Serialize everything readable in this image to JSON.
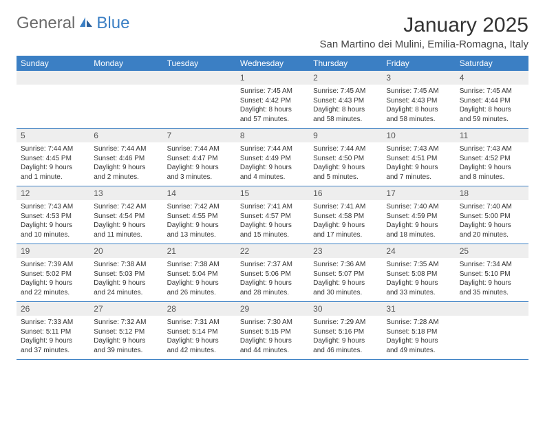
{
  "logo": {
    "text1": "General",
    "text2": "Blue"
  },
  "title": "January 2025",
  "location": "San Martino dei Mulini, Emilia-Romagna, Italy",
  "colors": {
    "header_bg": "#3b7fc4",
    "header_text": "#ffffff",
    "date_bg": "#eeeeee",
    "date_text": "#555555",
    "body_text": "#333333",
    "page_bg": "#ffffff",
    "logo_gray": "#6b6b6b",
    "logo_blue": "#3b7fc4"
  },
  "day_names": [
    "Sunday",
    "Monday",
    "Tuesday",
    "Wednesday",
    "Thursday",
    "Friday",
    "Saturday"
  ],
  "weeks": [
    [
      {
        "date": "",
        "sunrise": "",
        "sunset": "",
        "daylight": ""
      },
      {
        "date": "",
        "sunrise": "",
        "sunset": "",
        "daylight": ""
      },
      {
        "date": "",
        "sunrise": "",
        "sunset": "",
        "daylight": ""
      },
      {
        "date": "1",
        "sunrise": "Sunrise: 7:45 AM",
        "sunset": "Sunset: 4:42 PM",
        "daylight": "Daylight: 8 hours and 57 minutes."
      },
      {
        "date": "2",
        "sunrise": "Sunrise: 7:45 AM",
        "sunset": "Sunset: 4:43 PM",
        "daylight": "Daylight: 8 hours and 58 minutes."
      },
      {
        "date": "3",
        "sunrise": "Sunrise: 7:45 AM",
        "sunset": "Sunset: 4:43 PM",
        "daylight": "Daylight: 8 hours and 58 minutes."
      },
      {
        "date": "4",
        "sunrise": "Sunrise: 7:45 AM",
        "sunset": "Sunset: 4:44 PM",
        "daylight": "Daylight: 8 hours and 59 minutes."
      }
    ],
    [
      {
        "date": "5",
        "sunrise": "Sunrise: 7:44 AM",
        "sunset": "Sunset: 4:45 PM",
        "daylight": "Daylight: 9 hours and 1 minute."
      },
      {
        "date": "6",
        "sunrise": "Sunrise: 7:44 AM",
        "sunset": "Sunset: 4:46 PM",
        "daylight": "Daylight: 9 hours and 2 minutes."
      },
      {
        "date": "7",
        "sunrise": "Sunrise: 7:44 AM",
        "sunset": "Sunset: 4:47 PM",
        "daylight": "Daylight: 9 hours and 3 minutes."
      },
      {
        "date": "8",
        "sunrise": "Sunrise: 7:44 AM",
        "sunset": "Sunset: 4:49 PM",
        "daylight": "Daylight: 9 hours and 4 minutes."
      },
      {
        "date": "9",
        "sunrise": "Sunrise: 7:44 AM",
        "sunset": "Sunset: 4:50 PM",
        "daylight": "Daylight: 9 hours and 5 minutes."
      },
      {
        "date": "10",
        "sunrise": "Sunrise: 7:43 AM",
        "sunset": "Sunset: 4:51 PM",
        "daylight": "Daylight: 9 hours and 7 minutes."
      },
      {
        "date": "11",
        "sunrise": "Sunrise: 7:43 AM",
        "sunset": "Sunset: 4:52 PM",
        "daylight": "Daylight: 9 hours and 8 minutes."
      }
    ],
    [
      {
        "date": "12",
        "sunrise": "Sunrise: 7:43 AM",
        "sunset": "Sunset: 4:53 PM",
        "daylight": "Daylight: 9 hours and 10 minutes."
      },
      {
        "date": "13",
        "sunrise": "Sunrise: 7:42 AM",
        "sunset": "Sunset: 4:54 PM",
        "daylight": "Daylight: 9 hours and 11 minutes."
      },
      {
        "date": "14",
        "sunrise": "Sunrise: 7:42 AM",
        "sunset": "Sunset: 4:55 PM",
        "daylight": "Daylight: 9 hours and 13 minutes."
      },
      {
        "date": "15",
        "sunrise": "Sunrise: 7:41 AM",
        "sunset": "Sunset: 4:57 PM",
        "daylight": "Daylight: 9 hours and 15 minutes."
      },
      {
        "date": "16",
        "sunrise": "Sunrise: 7:41 AM",
        "sunset": "Sunset: 4:58 PM",
        "daylight": "Daylight: 9 hours and 17 minutes."
      },
      {
        "date": "17",
        "sunrise": "Sunrise: 7:40 AM",
        "sunset": "Sunset: 4:59 PM",
        "daylight": "Daylight: 9 hours and 18 minutes."
      },
      {
        "date": "18",
        "sunrise": "Sunrise: 7:40 AM",
        "sunset": "Sunset: 5:00 PM",
        "daylight": "Daylight: 9 hours and 20 minutes."
      }
    ],
    [
      {
        "date": "19",
        "sunrise": "Sunrise: 7:39 AM",
        "sunset": "Sunset: 5:02 PM",
        "daylight": "Daylight: 9 hours and 22 minutes."
      },
      {
        "date": "20",
        "sunrise": "Sunrise: 7:38 AM",
        "sunset": "Sunset: 5:03 PM",
        "daylight": "Daylight: 9 hours and 24 minutes."
      },
      {
        "date": "21",
        "sunrise": "Sunrise: 7:38 AM",
        "sunset": "Sunset: 5:04 PM",
        "daylight": "Daylight: 9 hours and 26 minutes."
      },
      {
        "date": "22",
        "sunrise": "Sunrise: 7:37 AM",
        "sunset": "Sunset: 5:06 PM",
        "daylight": "Daylight: 9 hours and 28 minutes."
      },
      {
        "date": "23",
        "sunrise": "Sunrise: 7:36 AM",
        "sunset": "Sunset: 5:07 PM",
        "daylight": "Daylight: 9 hours and 30 minutes."
      },
      {
        "date": "24",
        "sunrise": "Sunrise: 7:35 AM",
        "sunset": "Sunset: 5:08 PM",
        "daylight": "Daylight: 9 hours and 33 minutes."
      },
      {
        "date": "25",
        "sunrise": "Sunrise: 7:34 AM",
        "sunset": "Sunset: 5:10 PM",
        "daylight": "Daylight: 9 hours and 35 minutes."
      }
    ],
    [
      {
        "date": "26",
        "sunrise": "Sunrise: 7:33 AM",
        "sunset": "Sunset: 5:11 PM",
        "daylight": "Daylight: 9 hours and 37 minutes."
      },
      {
        "date": "27",
        "sunrise": "Sunrise: 7:32 AM",
        "sunset": "Sunset: 5:12 PM",
        "daylight": "Daylight: 9 hours and 39 minutes."
      },
      {
        "date": "28",
        "sunrise": "Sunrise: 7:31 AM",
        "sunset": "Sunset: 5:14 PM",
        "daylight": "Daylight: 9 hours and 42 minutes."
      },
      {
        "date": "29",
        "sunrise": "Sunrise: 7:30 AM",
        "sunset": "Sunset: 5:15 PM",
        "daylight": "Daylight: 9 hours and 44 minutes."
      },
      {
        "date": "30",
        "sunrise": "Sunrise: 7:29 AM",
        "sunset": "Sunset: 5:16 PM",
        "daylight": "Daylight: 9 hours and 46 minutes."
      },
      {
        "date": "31",
        "sunrise": "Sunrise: 7:28 AM",
        "sunset": "Sunset: 5:18 PM",
        "daylight": "Daylight: 9 hours and 49 minutes."
      },
      {
        "date": "",
        "sunrise": "",
        "sunset": "",
        "daylight": ""
      }
    ]
  ]
}
